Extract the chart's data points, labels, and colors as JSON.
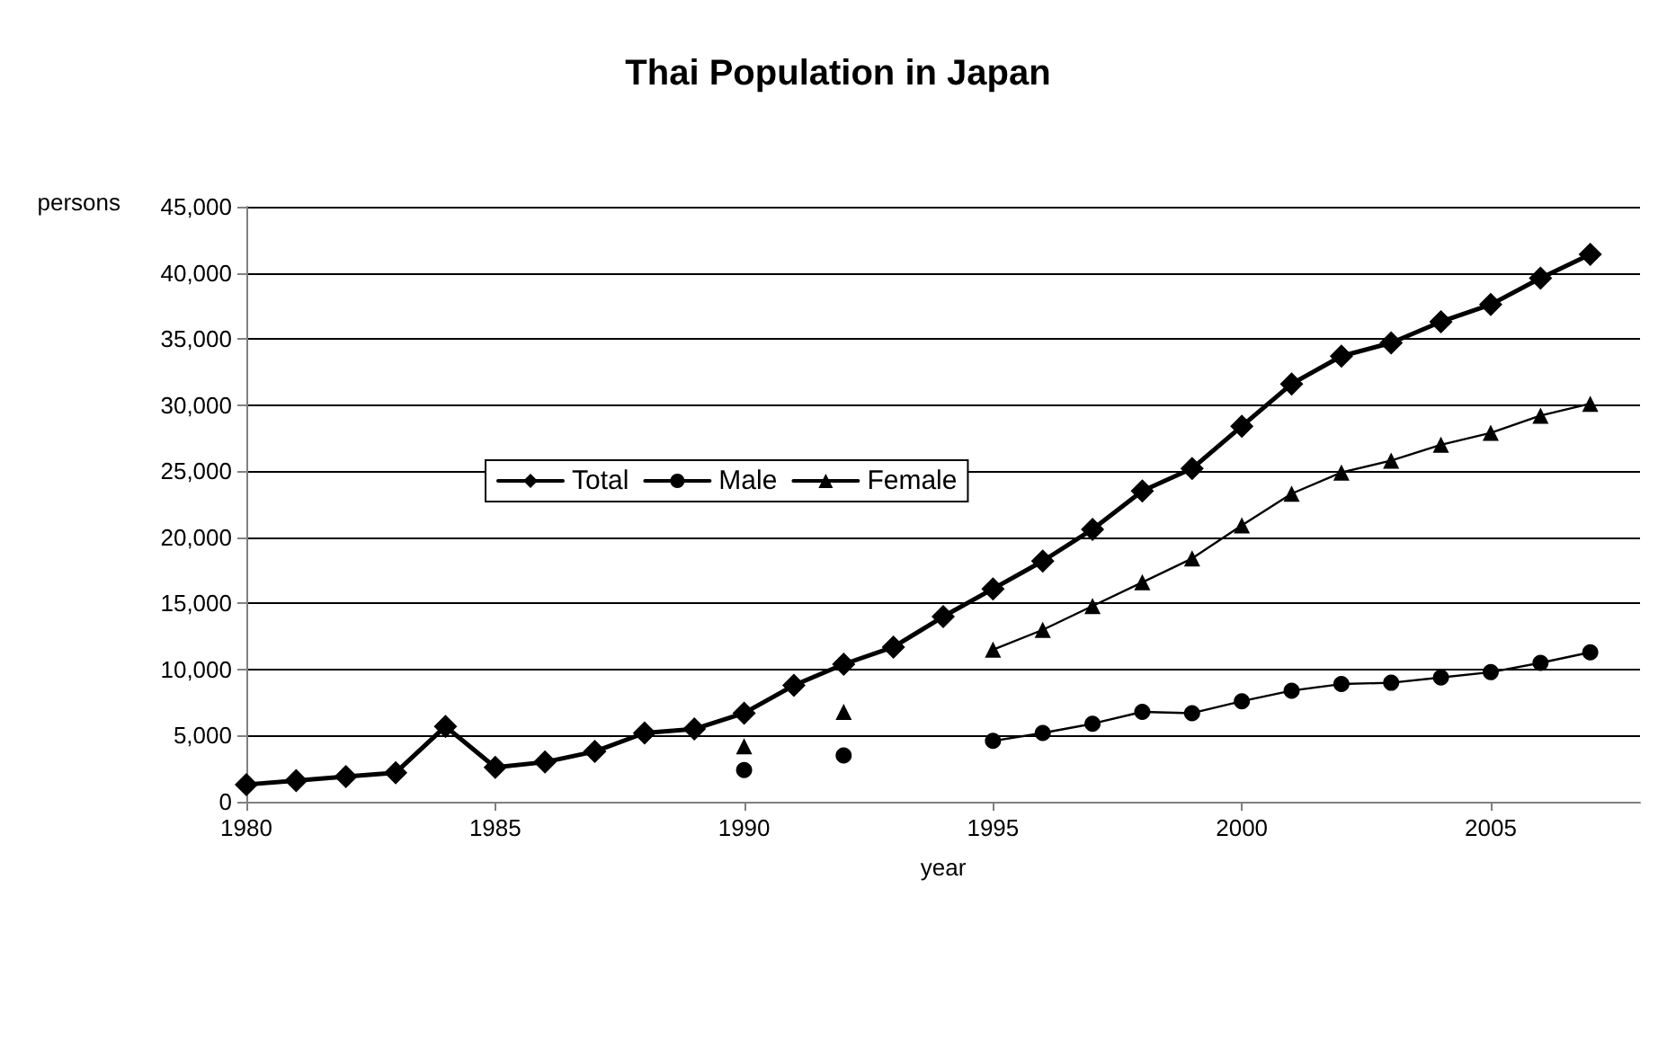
{
  "chart_data": {
    "type": "line",
    "title": "Thai Population in Japan",
    "xlabel": "year",
    "ylabel": "persons",
    "x": [
      1980,
      1981,
      1982,
      1983,
      1984,
      1985,
      1986,
      1987,
      1988,
      1989,
      1990,
      1991,
      1992,
      1993,
      1994,
      1995,
      1996,
      1997,
      1998,
      1999,
      2000,
      2001,
      2002,
      2003,
      2004,
      2005,
      2006,
      2007
    ],
    "series": [
      {
        "name": "Total",
        "color": "#000000",
        "marker": "diamond",
        "values": [
          1300,
          1600,
          1900,
          2200,
          5700,
          2600,
          3000,
          3800,
          5200,
          5500,
          6700,
          8800,
          10400,
          11700,
          14000,
          16100,
          18200,
          20600,
          23500,
          25200,
          28400,
          31600,
          33700,
          34700,
          36300,
          37600,
          39600,
          41400
        ]
      },
      {
        "name": "Male",
        "color": "#000000",
        "marker": "circle",
        "values": [
          null,
          null,
          null,
          null,
          null,
          null,
          null,
          null,
          null,
          null,
          2400,
          null,
          3500,
          null,
          null,
          4600,
          5200,
          5900,
          6800,
          6700,
          7600,
          8400,
          8900,
          9000,
          9400,
          9800,
          10500,
          11300
        ]
      },
      {
        "name": "Female",
        "color": "#000000",
        "marker": "triangle",
        "values": [
          null,
          null,
          null,
          null,
          null,
          null,
          null,
          null,
          null,
          null,
          4200,
          null,
          6800,
          null,
          null,
          11500,
          13000,
          14800,
          16600,
          18400,
          20900,
          23300,
          24900,
          25800,
          27000,
          27900,
          29200,
          30100
        ]
      }
    ],
    "xlim": [
      1980,
      2008
    ],
    "xticks": [
      1980,
      1985,
      1990,
      1995,
      2000,
      2005
    ],
    "ylim": [
      0,
      45000
    ],
    "yticks": [
      0,
      {
        "value": 5000,
        "label": "5,000"
      },
      {
        "value": 10000,
        "label": "10,000"
      },
      {
        "value": 15000,
        "label": "15,000"
      },
      {
        "value": 20000,
        "label": "20,000"
      },
      {
        "value": 25000,
        "label": "25,000"
      },
      {
        "value": 30000,
        "label": "30,000"
      },
      {
        "value": 35000,
        "label": "35,000"
      },
      {
        "value": 40000,
        "label": "40,000"
      },
      {
        "value": 45000,
        "label": "45,000"
      }
    ],
    "grid": "y",
    "legend": "left",
    "line_style": "solid"
  }
}
